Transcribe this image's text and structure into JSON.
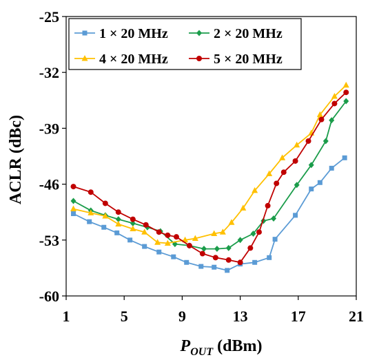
{
  "chart_data": {
    "type": "line",
    "title": "",
    "xlabel": {
      "main": "P",
      "sub": "OUT",
      "unit": " (dBm)"
    },
    "ylabel": "ACLR (dBc)",
    "xlim": [
      1,
      21
    ],
    "ylim": [
      -60,
      -25
    ],
    "xticks": [
      1,
      5,
      9,
      13,
      17,
      21
    ],
    "yticks": [
      -25,
      -32,
      -39,
      -46,
      -53,
      -60
    ],
    "grid": "none",
    "legend_position": "top",
    "series": [
      {
        "name": "1 × 20 MHz",
        "color": "#5b9bd5",
        "marker": "square",
        "x": [
          1.5,
          2.6,
          3.6,
          4.5,
          5.4,
          6.4,
          7.4,
          8.4,
          9.3,
          10.3,
          11.2,
          12.1,
          13.0,
          14.0,
          15.0,
          15.4,
          16.8,
          17.9,
          18.5,
          19.3,
          20.2
        ],
        "y": [
          -49.7,
          -50.7,
          -51.4,
          -52.1,
          -53.0,
          -53.8,
          -54.5,
          -55.1,
          -55.8,
          -56.3,
          -56.4,
          -56.8,
          -56.0,
          -55.8,
          -55.2,
          -52.9,
          -49.9,
          -46.6,
          -45.8,
          -44.0,
          -42.7
        ]
      },
      {
        "name": "2 × 20 MHz",
        "color": "#1a9c4a",
        "marker": "diamond",
        "x": [
          1.5,
          2.7,
          3.7,
          4.6,
          5.6,
          6.6,
          7.5,
          8.5,
          9.5,
          10.5,
          11.4,
          12.2,
          13.0,
          13.9,
          14.6,
          15.3,
          16.9,
          17.9,
          18.9,
          19.3,
          20.3
        ],
        "y": [
          -48.1,
          -49.3,
          -49.9,
          -50.4,
          -50.9,
          -51.4,
          -51.9,
          -53.5,
          -53.7,
          -54.1,
          -54.1,
          -54.0,
          -53.0,
          -52.2,
          -50.6,
          -50.3,
          -46.1,
          -43.6,
          -40.6,
          -38.0,
          -35.6
        ]
      },
      {
        "name": "4 × 20 MHz",
        "color": "#ffc000",
        "marker": "triangle",
        "x": [
          1.5,
          2.7,
          3.7,
          4.6,
          5.6,
          6.4,
          7.3,
          8.0,
          9.2,
          9.9,
          11.2,
          11.8,
          12.4,
          13.2,
          14.0,
          15.0,
          15.9,
          16.9,
          17.9,
          18.5,
          19.5,
          20.3
        ],
        "y": [
          -49.1,
          -49.6,
          -50.0,
          -51.0,
          -51.6,
          -52.0,
          -53.3,
          -53.4,
          -53.0,
          -52.8,
          -52.2,
          -52.0,
          -50.8,
          -49.0,
          -46.8,
          -44.7,
          -42.7,
          -41.1,
          -39.6,
          -37.3,
          -35.0,
          -33.6
        ]
      },
      {
        "name": "5 × 20 MHz",
        "color": "#c00000",
        "marker": "circle",
        "x": [
          1.5,
          2.7,
          3.7,
          4.6,
          5.6,
          6.5,
          7.4,
          8.0,
          8.6,
          9.5,
          10.4,
          11.3,
          12.2,
          13.0,
          13.7,
          14.3,
          14.9,
          15.5,
          16.0,
          16.8,
          17.7,
          18.6,
          19.5,
          20.3
        ],
        "y": [
          -46.3,
          -47.0,
          -48.4,
          -49.5,
          -50.4,
          -51.1,
          -52.0,
          -52.4,
          -52.6,
          -53.7,
          -54.7,
          -55.2,
          -55.5,
          -55.8,
          -54.0,
          -52.0,
          -48.7,
          -45.9,
          -44.5,
          -43.1,
          -40.6,
          -37.9,
          -35.9,
          -34.5
        ]
      }
    ]
  }
}
